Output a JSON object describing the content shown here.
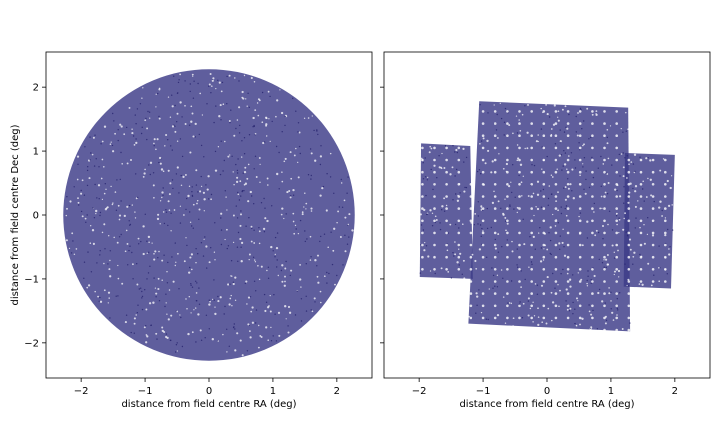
{
  "chart_data": [
    {
      "type": "scatter",
      "panel": "left",
      "description_shape": "circle",
      "xlabel": "distance from field centre RA (deg)",
      "ylabel": "distance from field centre Dec (deg)",
      "xlim": [
        -2.55,
        2.55
      ],
      "ylim": [
        -2.55,
        2.55
      ],
      "xticks": [
        -2,
        -1,
        0,
        1,
        2
      ],
      "yticks": [
        -2,
        -1,
        0,
        1,
        2
      ],
      "xtick_labels": [
        "−2",
        "−1",
        "0",
        "1",
        "2"
      ],
      "ytick_labels": [
        "−2",
        "−1",
        "0",
        "1",
        "2"
      ],
      "grid": false,
      "series": [
        {
          "marker_color": "#3c3a87",
          "region": {
            "shape": "circle",
            "center": [
              0,
              0
            ],
            "radius": 2.28
          }
        }
      ]
    },
    {
      "type": "scatter",
      "panel": "right",
      "description_shape": "mosaic of rectangular tiles",
      "xlabel": "distance from field centre RA (deg)",
      "ylabel": "",
      "xlim": [
        -2.55,
        2.55
      ],
      "ylim": [
        -2.55,
        2.55
      ],
      "xticks": [
        -2,
        -1,
        0,
        1,
        2
      ],
      "yticks": [
        -2,
        -1,
        0,
        1,
        2
      ],
      "xtick_labels": [
        "−2",
        "−1",
        "0",
        "1",
        "2"
      ],
      "ytick_labels": [],
      "grid": false,
      "series": [
        {
          "marker_color": "#3c3a87",
          "region": {
            "shape": "polygon-union",
            "polygons": [
              [
                [
                  -1.97,
                  1.12
                ],
                [
                  -1.2,
                  1.08
                ],
                [
                  -1.16,
                  -1.0
                ],
                [
                  -1.99,
                  -0.97
                ]
              ],
              [
                [
                  -1.06,
                  1.78
                ],
                [
                  1.27,
                  1.68
                ],
                [
                  1.3,
                  -1.82
                ],
                [
                  -1.23,
                  -1.7
                ]
              ],
              [
                [
                  1.22,
                  0.97
                ],
                [
                  2.0,
                  0.94
                ],
                [
                  1.94,
                  -1.15
                ],
                [
                  1.2,
                  -1.12
                ]
              ]
            ]
          }
        }
      ]
    }
  ]
}
